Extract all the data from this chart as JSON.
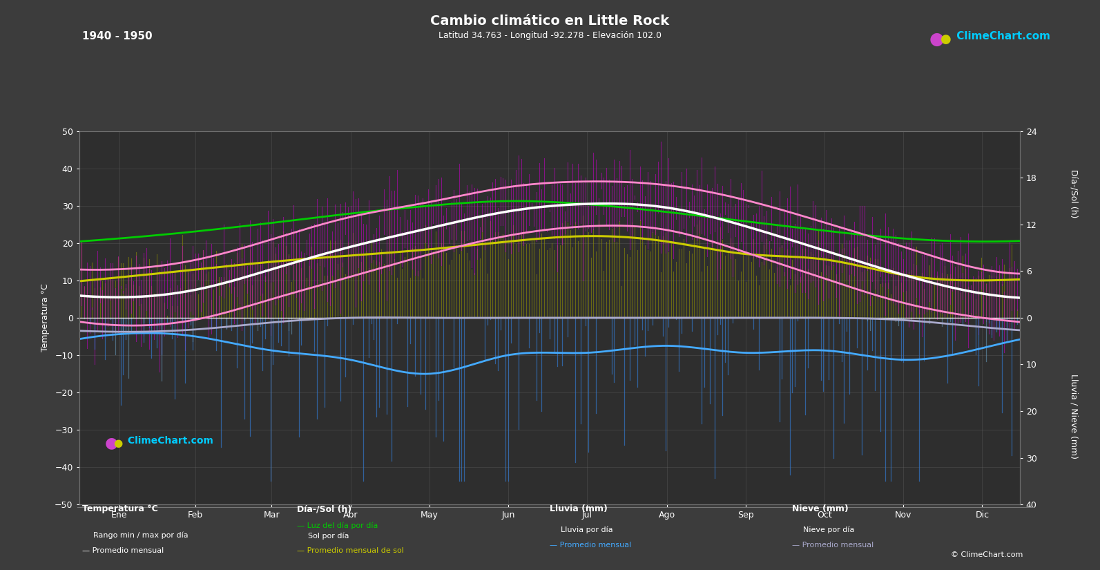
{
  "title": "Cambio climático en Little Rock",
  "subtitle": "Latitud 34.763 - Longitud -92.278 - Elevación 102.0",
  "period_label": "1940 - 1950",
  "bg_color": "#3c3c3c",
  "plot_bg_color": "#2e2e2e",
  "months_labels": [
    "Ene",
    "Feb",
    "Mar",
    "Abr",
    "May",
    "Jun",
    "Jul",
    "Ago",
    "Sep",
    "Oct",
    "Nov",
    "Dic"
  ],
  "temp_ylim_min": -50,
  "temp_ylim_max": 50,
  "sun_scale_max": 24,
  "rain_scale_max": 40,
  "sun_to_temp_scale": 2.0833,
  "rain_to_temp_scale": -1.25,
  "temp_avg_monthly": [
    5.5,
    7.5,
    13.0,
    19.0,
    24.0,
    28.5,
    30.5,
    29.5,
    24.5,
    18.0,
    11.5,
    6.5
  ],
  "temp_min_avg_monthly": [
    -2.0,
    -0.5,
    5.0,
    11.0,
    17.0,
    22.0,
    24.5,
    23.5,
    17.5,
    10.5,
    4.0,
    0.0
  ],
  "temp_max_avg_monthly": [
    13.0,
    15.5,
    21.0,
    27.0,
    31.0,
    35.0,
    36.5,
    35.5,
    31.5,
    25.5,
    19.0,
    13.0
  ],
  "daylight_monthly": [
    10.2,
    11.1,
    12.2,
    13.4,
    14.4,
    15.0,
    14.6,
    13.6,
    12.4,
    11.2,
    10.2,
    9.8
  ],
  "sunshine_monthly": [
    5.2,
    6.2,
    7.2,
    8.0,
    8.8,
    9.8,
    10.5,
    9.8,
    8.2,
    7.5,
    5.5,
    4.8
  ],
  "rain_monthly_avg_mm": [
    3.5,
    4.0,
    7.0,
    9.0,
    12.0,
    8.0,
    7.5,
    6.0,
    7.5,
    7.0,
    9.0,
    6.5
  ],
  "snow_monthly_avg_mm": [
    3.0,
    2.5,
    1.0,
    0.0,
    0.0,
    0.0,
    0.0,
    0.0,
    0.0,
    0.0,
    0.5,
    2.0
  ],
  "right_axis_sun_ticks": [
    0,
    6,
    12,
    18,
    24
  ],
  "right_axis_rain_ticks": [
    0,
    10,
    20,
    30,
    40
  ],
  "left_axis_ticks": [
    -50,
    -40,
    -30,
    -20,
    -10,
    0,
    10,
    20,
    30,
    40,
    50
  ]
}
